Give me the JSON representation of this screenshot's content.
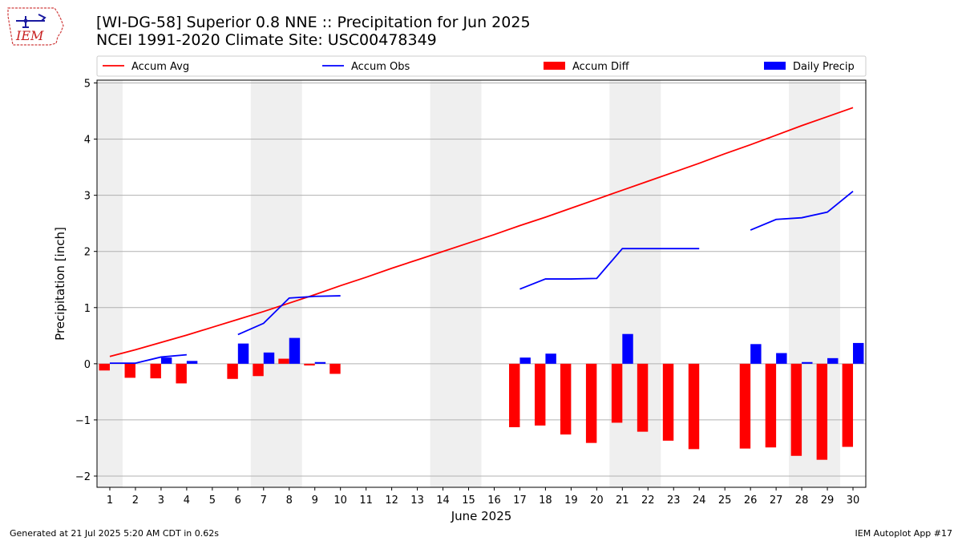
{
  "header": {
    "title_line1": "[WI-DG-58] Superior 0.8 NNE :: Precipitation for Jun 2025",
    "title_line2": "NCEI 1991-2020 Climate Site: USC00478349",
    "logo_text": "IEM"
  },
  "footer": {
    "generated": "Generated at 21 Jul 2025 5:20 AM CDT in 0.62s",
    "app": "IEM Autoplot App #17"
  },
  "chart_data": {
    "type": "bar",
    "xlabel": "June 2025",
    "ylabel": "Precipitation [inch]",
    "ylim": [
      -2.2,
      5.05
    ],
    "yticks": [
      -2,
      -1,
      0,
      1,
      2,
      3,
      4,
      5
    ],
    "ytick_labels": [
      "−2",
      "−1",
      "0",
      "1",
      "2",
      "3",
      "4",
      "5"
    ],
    "grid": "horizontal",
    "legend_position": "top",
    "weekend_shading": [
      [
        1,
        1
      ],
      [
        7,
        8
      ],
      [
        14,
        15
      ],
      [
        21,
        22
      ],
      [
        28,
        29
      ]
    ],
    "categories": [
      "1",
      "2",
      "3",
      "4",
      "5",
      "6",
      "7",
      "8",
      "9",
      "10",
      "11",
      "12",
      "13",
      "14",
      "15",
      "16",
      "17",
      "18",
      "19",
      "20",
      "21",
      "22",
      "23",
      "24",
      "25",
      "26",
      "27",
      "28",
      "29",
      "30"
    ],
    "series": [
      {
        "name": "Accum Avg",
        "kind": "line",
        "color": "#ff0000",
        "values": [
          0.13,
          0.25,
          0.38,
          0.51,
          0.65,
          0.79,
          0.93,
          1.08,
          1.23,
          1.39,
          1.54,
          1.7,
          1.85,
          2.0,
          2.15,
          2.3,
          2.46,
          2.61,
          2.77,
          2.93,
          3.09,
          3.25,
          3.41,
          3.57,
          3.74,
          3.9,
          4.07,
          4.24,
          4.4,
          4.56
        ]
      },
      {
        "name": "Accum Obs",
        "kind": "line",
        "color": "#0000ff",
        "values": [
          0.01,
          0.01,
          0.12,
          0.16,
          null,
          0.52,
          0.72,
          1.17,
          1.2,
          1.21,
          null,
          null,
          null,
          null,
          null,
          null,
          1.33,
          1.51,
          1.51,
          1.52,
          2.05,
          2.05,
          2.05,
          2.05,
          null,
          2.38,
          2.57,
          2.6,
          2.7,
          3.07
        ]
      },
      {
        "name": "Accum Diff",
        "kind": "bar",
        "color": "#ff0000",
        "values": [
          -0.12,
          -0.25,
          -0.26,
          -0.35,
          null,
          -0.27,
          -0.22,
          0.09,
          -0.03,
          -0.18,
          null,
          null,
          null,
          null,
          null,
          null,
          -1.13,
          -1.1,
          -1.26,
          -1.41,
          -1.05,
          -1.21,
          -1.37,
          -1.52,
          null,
          -1.51,
          -1.49,
          -1.64,
          -1.71,
          -1.48
        ]
      },
      {
        "name": "Daily Precip",
        "kind": "bar",
        "color": "#0000ff",
        "values": [
          0.0,
          0.0,
          0.11,
          0.05,
          null,
          0.36,
          0.2,
          0.46,
          0.03,
          0.0,
          null,
          null,
          null,
          null,
          null,
          null,
          0.11,
          0.18,
          0.0,
          0.0,
          0.53,
          0.0,
          0.0,
          0.0,
          null,
          0.35,
          0.19,
          0.03,
          0.1,
          0.37
        ]
      }
    ]
  }
}
